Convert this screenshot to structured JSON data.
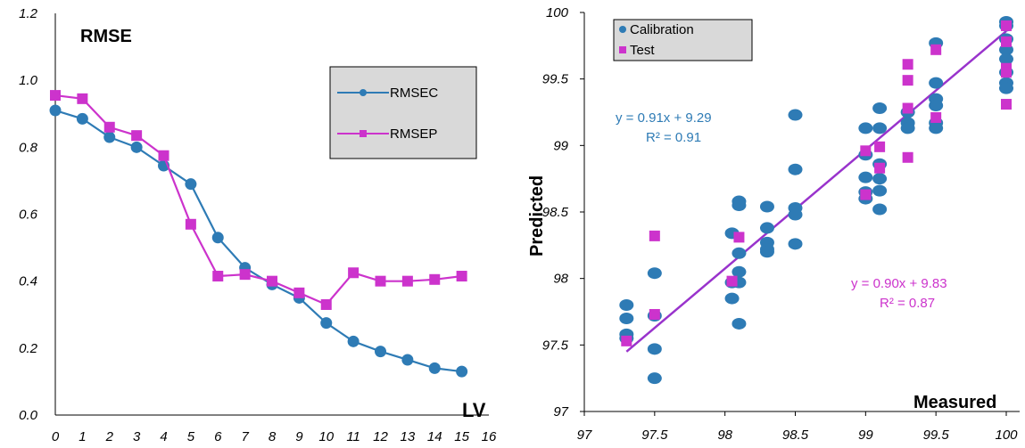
{
  "chart_data": [
    {
      "type": "line",
      "title": "RMSE",
      "xlabel": "LV",
      "ylabel": "",
      "xlim": [
        0,
        16
      ],
      "ylim": [
        0.0,
        1.2
      ],
      "x_ticks": [
        "0",
        "1",
        "2",
        "3",
        "4",
        "5",
        "6",
        "7",
        "8",
        "9",
        "10",
        "11",
        "12",
        "13",
        "14",
        "15",
        "16"
      ],
      "y_ticks": [
        "0.0",
        "0.2",
        "0.4",
        "0.6",
        "0.8",
        "1.0",
        "1.2"
      ],
      "legend_position": "top-right",
      "grid": false,
      "x": [
        0,
        1,
        2,
        3,
        4,
        5,
        6,
        7,
        8,
        9,
        10,
        11,
        12,
        13,
        14,
        15
      ],
      "series": [
        {
          "name": "RMSEC",
          "color": "#2e7bb5",
          "marker": "circle",
          "values": [
            0.91,
            0.885,
            0.83,
            0.8,
            0.745,
            0.69,
            0.53,
            0.44,
            0.39,
            0.35,
            0.275,
            0.22,
            0.19,
            0.165,
            0.14,
            0.13
          ]
        },
        {
          "name": "RMSEP",
          "color": "#cc33cc",
          "marker": "square",
          "values": [
            0.955,
            0.945,
            0.86,
            0.835,
            0.775,
            0.57,
            0.415,
            0.42,
            0.4,
            0.365,
            0.33,
            0.425,
            0.4,
            0.4,
            0.405,
            0.415
          ]
        }
      ]
    },
    {
      "type": "scatter",
      "title": "",
      "xlabel": "Measured",
      "ylabel": "Predicted",
      "xlim": [
        97,
        100
      ],
      "ylim": [
        97,
        100
      ],
      "x_ticks": [
        "97",
        "97.5",
        "98",
        "98.5",
        "99",
        "99.5",
        "100"
      ],
      "y_ticks": [
        "97",
        "97.5",
        "98",
        "98.5",
        "99",
        "99.5",
        "100"
      ],
      "legend_position": "top-left",
      "grid": false,
      "series": [
        {
          "name": "Calibration",
          "color": "#2e7bb5",
          "marker": "circle",
          "points": [
            [
              97.3,
              97.8
            ],
            [
              97.3,
              97.7
            ],
            [
              97.3,
              97.58
            ],
            [
              97.3,
              97.55
            ],
            [
              97.5,
              98.04
            ],
            [
              97.5,
              97.72
            ],
            [
              97.5,
              97.47
            ],
            [
              97.5,
              97.25
            ],
            [
              98.05,
              98.34
            ],
            [
              98.05,
              97.97
            ],
            [
              98.05,
              97.85
            ],
            [
              98.1,
              98.58
            ],
            [
              98.1,
              98.55
            ],
            [
              98.1,
              98.19
            ],
            [
              98.1,
              98.05
            ],
            [
              98.1,
              97.97
            ],
            [
              98.1,
              97.66
            ],
            [
              98.3,
              98.54
            ],
            [
              98.3,
              98.38
            ],
            [
              98.3,
              98.27
            ],
            [
              98.3,
              98.22
            ],
            [
              98.3,
              98.2
            ],
            [
              98.5,
              99.23
            ],
            [
              98.5,
              98.82
            ],
            [
              98.5,
              98.53
            ],
            [
              98.5,
              98.48
            ],
            [
              98.5,
              98.26
            ],
            [
              99.0,
              99.13
            ],
            [
              99.0,
              98.93
            ],
            [
              99.0,
              98.76
            ],
            [
              99.0,
              98.65
            ],
            [
              99.0,
              98.6
            ],
            [
              99.1,
              99.28
            ],
            [
              99.1,
              99.13
            ],
            [
              99.1,
              98.86
            ],
            [
              99.1,
              98.75
            ],
            [
              99.1,
              98.66
            ],
            [
              99.1,
              98.52
            ],
            [
              99.3,
              99.25
            ],
            [
              99.3,
              99.17
            ],
            [
              99.3,
              99.13
            ],
            [
              99.5,
              99.77
            ],
            [
              99.5,
              99.47
            ],
            [
              99.5,
              99.35
            ],
            [
              99.5,
              99.3
            ],
            [
              99.5,
              99.17
            ],
            [
              99.5,
              99.13
            ],
            [
              100,
              99.93
            ],
            [
              100,
              99.9
            ],
            [
              100,
              99.8
            ],
            [
              100,
              99.72
            ],
            [
              100,
              99.65
            ],
            [
              100,
              99.55
            ],
            [
              100,
              99.47
            ],
            [
              100,
              99.43
            ]
          ]
        },
        {
          "name": "Test",
          "color": "#cc33cc",
          "marker": "square",
          "points": [
            [
              97.3,
              97.53
            ],
            [
              97.5,
              98.32
            ],
            [
              97.5,
              97.73
            ],
            [
              98.05,
              97.98
            ],
            [
              98.1,
              98.31
            ],
            [
              99.0,
              98.96
            ],
            [
              99.0,
              98.63
            ],
            [
              99.1,
              98.99
            ],
            [
              99.1,
              98.83
            ],
            [
              99.3,
              99.61
            ],
            [
              99.3,
              99.49
            ],
            [
              99.3,
              99.28
            ],
            [
              99.3,
              98.91
            ],
            [
              99.5,
              99.72
            ],
            [
              99.5,
              99.21
            ],
            [
              100,
              99.9
            ],
            [
              100,
              99.78
            ],
            [
              100,
              99.58
            ],
            [
              100,
              99.55
            ],
            [
              100,
              99.31
            ]
          ]
        }
      ],
      "fit_line": {
        "color": "#9933cc",
        "x": [
          97.3,
          100
        ],
        "y": [
          97.45,
          99.86
        ]
      },
      "annotations": [
        {
          "text": "y =  0.91x +  9.29",
          "color": "#2e7bb5"
        },
        {
          "text": "R² =  0.91",
          "color": "#2e7bb5"
        },
        {
          "text": "y =  0.90x +  9.83",
          "color": "#cc33cc"
        },
        {
          "text": "R² =  0.87",
          "color": "#cc33cc"
        }
      ]
    }
  ]
}
